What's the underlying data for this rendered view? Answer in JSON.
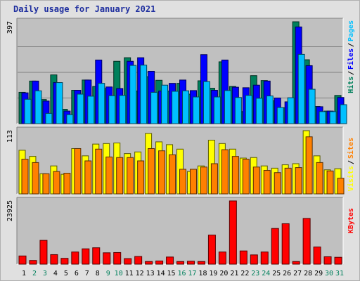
{
  "page": {
    "title": "Daily usage for January 2021"
  },
  "colors": {
    "background": "#e0e0e0",
    "panel": "#c0c0c0",
    "hits": "#00805c",
    "files": "#0000ff",
    "pages": "#00c0ff",
    "visits": "#ffff00",
    "sites": "#ff8000",
    "kbytes": "#ff0000",
    "weekend_label": "#00805c",
    "weekday_label": "#000000",
    "gridline": "#808080",
    "legend_separator": "#000000"
  },
  "chart_data": [
    {
      "type": "bar",
      "title": "Daily usage for January 2021",
      "categories": [
        "1",
        "2",
        "3",
        "4",
        "5",
        "6",
        "7",
        "8",
        "9",
        "10",
        "11",
        "12",
        "13",
        "14",
        "15",
        "16",
        "17",
        "18",
        "19",
        "20",
        "21",
        "22",
        "23",
        "24",
        "25",
        "26",
        "27",
        "28",
        "29",
        "30",
        "31"
      ],
      "weekend_days": [
        "2",
        "3",
        "9",
        "10",
        "16",
        "17",
        "23",
        "24",
        "30",
        "31"
      ],
      "ylim": [
        0,
        397
      ],
      "ytick_label": "397",
      "legend": [
        "Hits",
        "Files",
        "Pages"
      ],
      "legend_position": "right",
      "series": [
        {
          "name": "Hits",
          "values": [
            122,
            166,
            94,
            190,
            56,
            130,
            170,
            145,
            137,
            243,
            257,
            127,
            183,
            169,
            127,
            157,
            115,
            167,
            138,
            241,
            145,
            47,
            187,
            168,
            89,
            62,
            397,
            249,
            67,
            49,
            110
          ]
        },
        {
          "name": "Files",
          "values": [
            120,
            166,
            88,
            160,
            49,
            130,
            170,
            248,
            143,
            137,
            243,
            257,
            204,
            127,
            157,
            170,
            129,
            269,
            130,
            248,
            142,
            140,
            150,
            166,
            100,
            85,
            377,
            226,
            66,
            49,
            102
          ]
        },
        {
          "name": "Pages",
          "values": [
            95,
            128,
            40,
            160,
            35,
            115,
            107,
            157,
            109,
            110,
            227,
            228,
            122,
            150,
            126,
            128,
            104,
            164,
            104,
            129,
            102,
            110,
            99,
            108,
            63,
            101,
            270,
            134,
            47,
            47,
            74
          ]
        }
      ]
    },
    {
      "type": "bar",
      "ylim": [
        0,
        113
      ],
      "ytick_label": "113",
      "legend": [
        "Visits",
        "Sites"
      ],
      "legend_position": "right",
      "series": [
        {
          "name": "Visits",
          "values": [
            78,
            67,
            36,
            50,
            35,
            81,
            68,
            89,
            90,
            91,
            72,
            75,
            108,
            93,
            88,
            80,
            40,
            50,
            96,
            90,
            80,
            64,
            65,
            50,
            46,
            52,
            54,
            113,
            68,
            43,
            45
          ]
        },
        {
          "name": "Sites",
          "values": [
            62,
            56,
            36,
            40,
            37,
            81,
            59,
            80,
            66,
            65,
            65,
            59,
            81,
            77,
            70,
            44,
            44,
            48,
            54,
            79,
            67,
            62,
            48,
            42,
            38,
            46,
            47,
            102,
            56,
            41,
            28
          ]
        }
      ]
    },
    {
      "type": "bar",
      "ylim": [
        0,
        23925
      ],
      "ytick_label": "23925",
      "legend": [
        "KBytes"
      ],
      "legend_position": "right",
      "series": [
        {
          "name": "KBytes",
          "values": [
            3100,
            1400,
            9000,
            3600,
            2200,
            4600,
            5800,
            6200,
            4300,
            4400,
            2100,
            2900,
            1000,
            1200,
            2700,
            1000,
            1100,
            1000,
            11000,
            4600,
            23925,
            5000,
            3500,
            4600,
            13500,
            15300,
            1000,
            17300,
            6500,
            2800,
            2600
          ]
        }
      ]
    }
  ]
}
